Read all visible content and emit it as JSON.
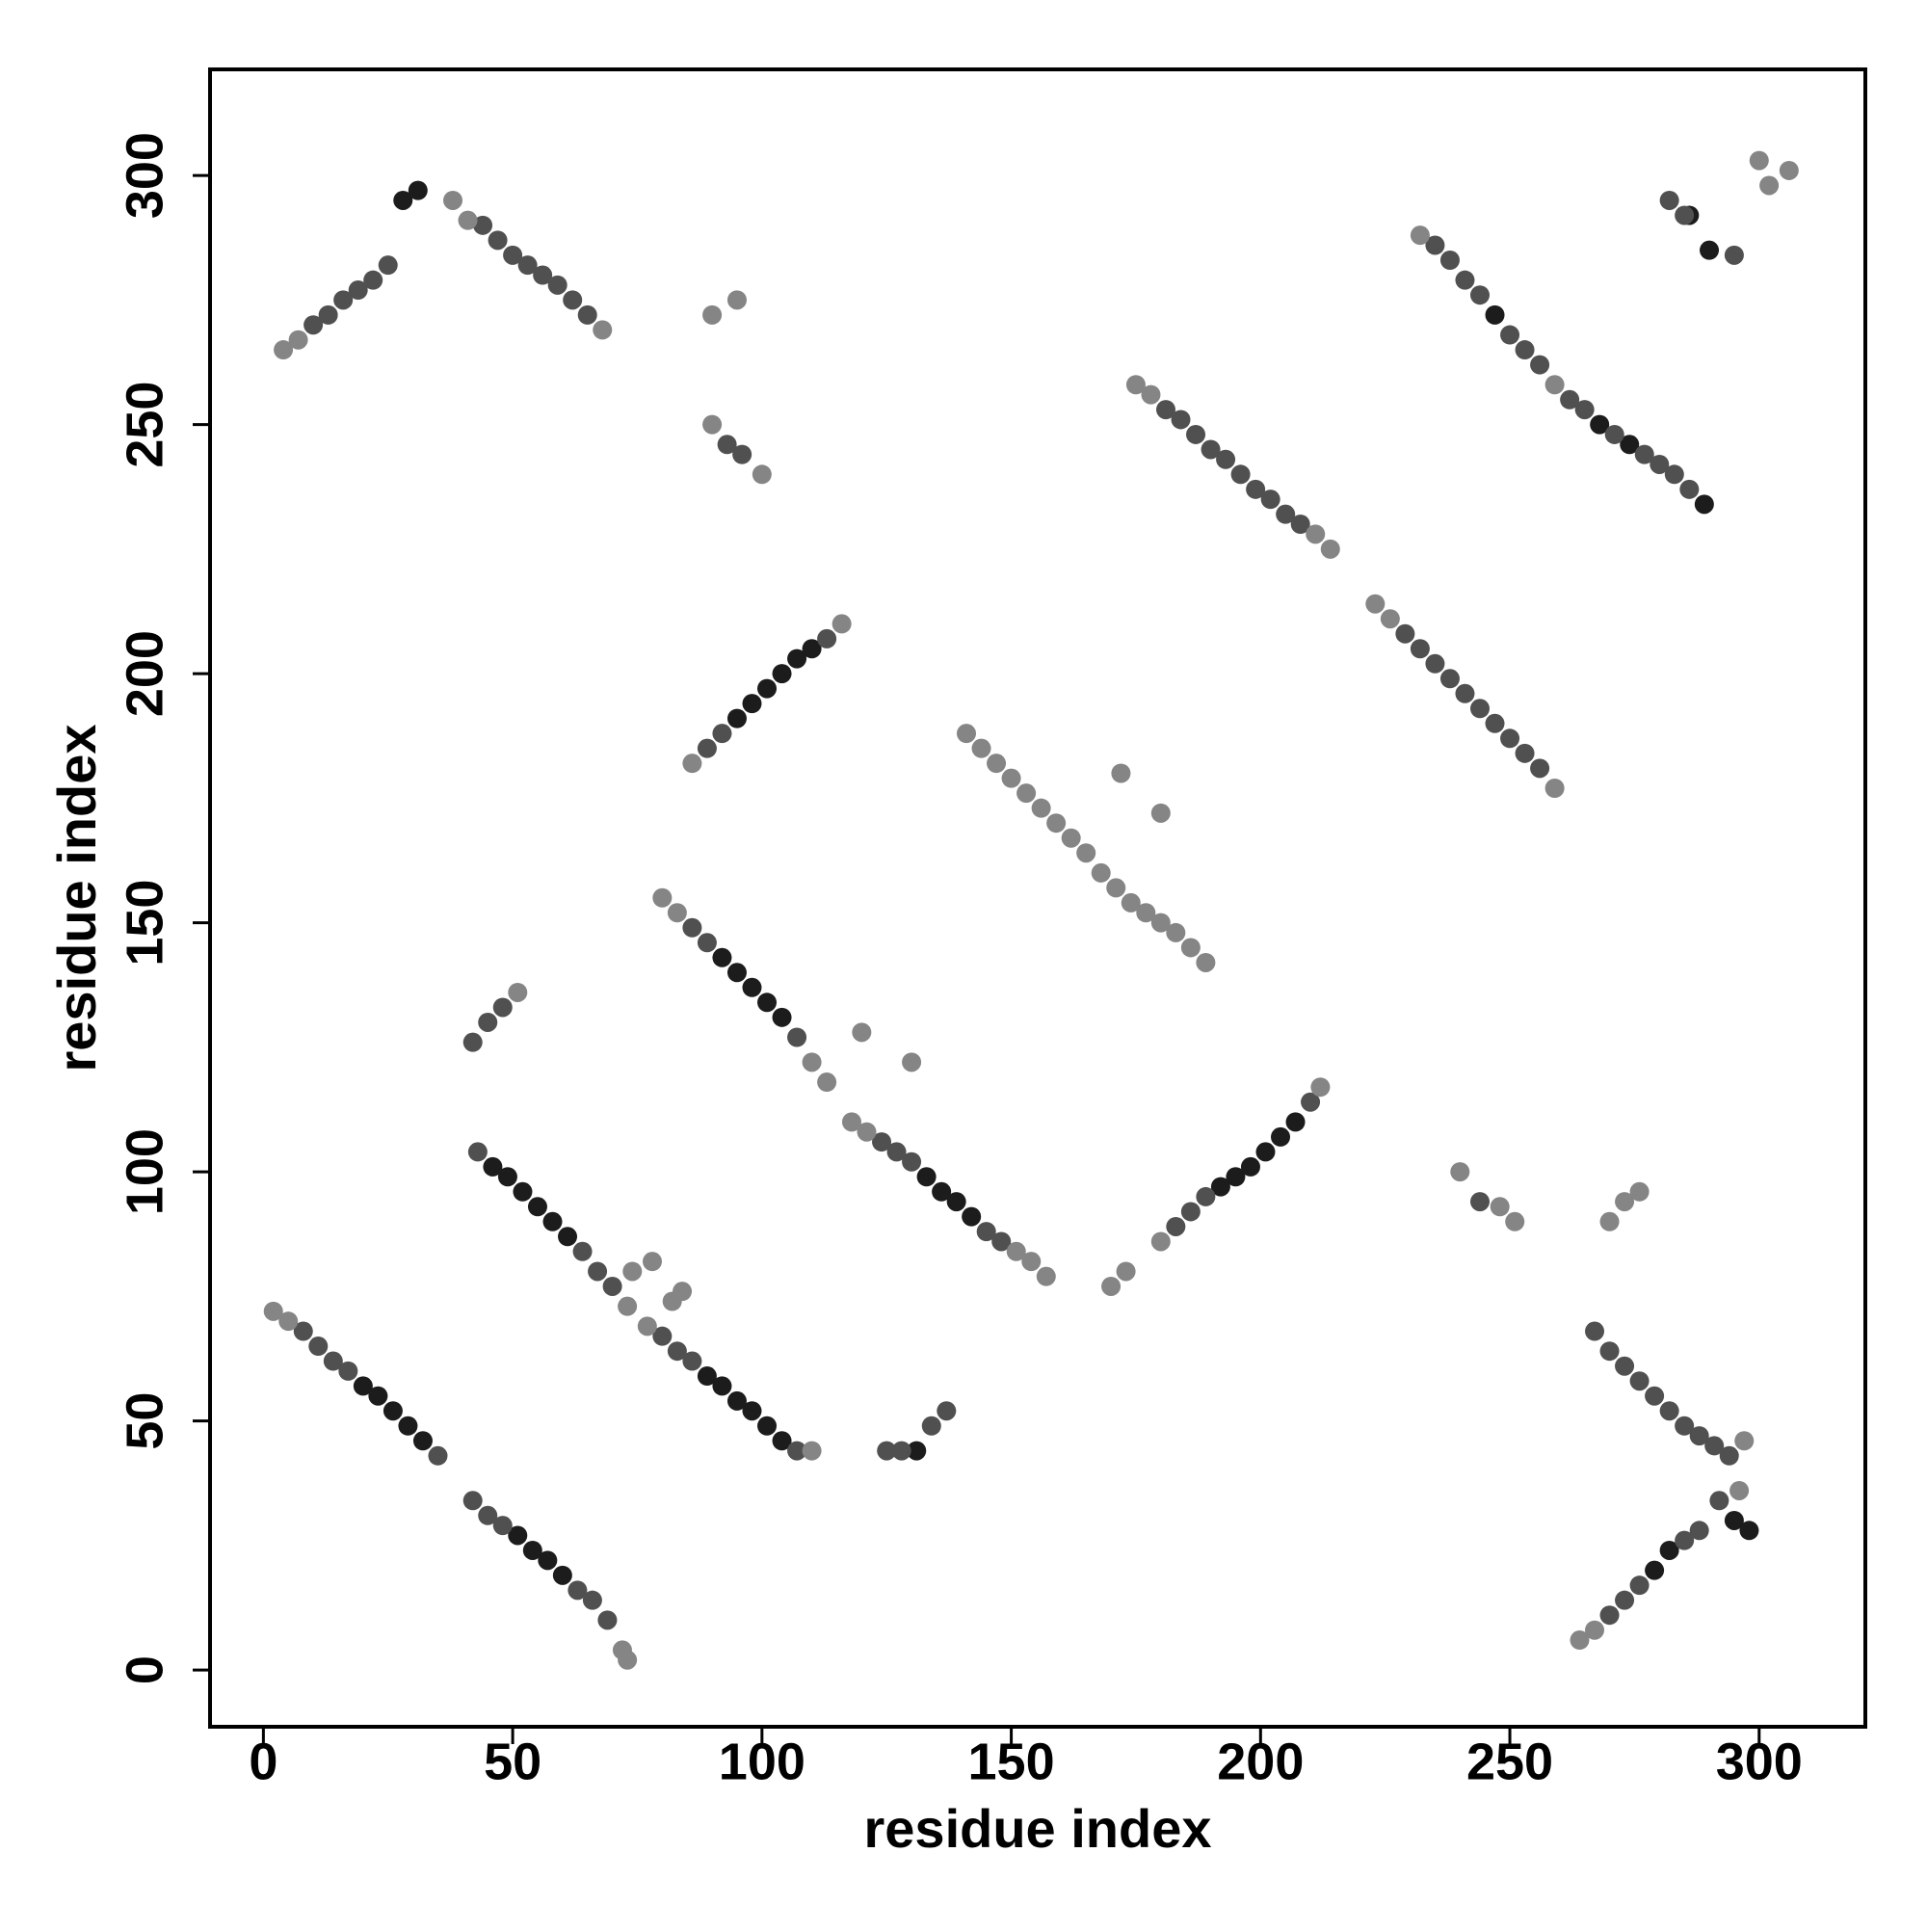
{
  "chart_data": {
    "type": "scatter",
    "xlabel": "residue index",
    "ylabel": "residue index",
    "xlim": [
      -10.7,
      321.3
    ],
    "ylim": [
      -11.4,
      321.3
    ],
    "xticks": [
      0,
      50,
      100,
      150,
      200,
      250,
      300
    ],
    "yticks": [
      0,
      50,
      100,
      150,
      200,
      250,
      300
    ],
    "series": [
      {
        "color": "#1c1c1c",
        "x": [
          20,
          23,
          26,
          29,
          32,
          51,
          54,
          57,
          60,
          46,
          49,
          52,
          55,
          58,
          61,
          89,
          92,
          95,
          98,
          101,
          104,
          92,
          95,
          98,
          101,
          104,
          133,
          136,
          139,
          142,
          95,
          98,
          101,
          104,
          107,
          110,
          192,
          195,
          198,
          201,
          204,
          207,
          247,
          268,
          274,
          289,
          28,
          31,
          279,
          282,
          295,
          298,
          286,
          290,
          131
        ],
        "values": [
          57,
          55,
          52,
          49,
          46,
          27,
          24,
          22,
          19,
          101,
          99,
          96,
          93,
          90,
          87,
          59,
          57,
          54,
          52,
          49,
          46,
          143,
          140,
          137,
          134,
          131,
          99,
          96,
          94,
          91,
          191,
          194,
          197,
          200,
          203,
          205,
          97,
          99,
          101,
          104,
          107,
          110,
          272,
          250,
          246,
          234,
          295,
          297,
          20,
          24,
          30,
          28,
          292,
          285,
          44
        ]
      },
      {
        "color": "#505050",
        "x": [
          8,
          11,
          14,
          17,
          35,
          42,
          45,
          48,
          63,
          66,
          69,
          43,
          64,
          67,
          70,
          80,
          83,
          86,
          107,
          86,
          89,
          107,
          124,
          127,
          130,
          145,
          148,
          181,
          184,
          187,
          190,
          193,
          196,
          199,
          202,
          205,
          208,
          229,
          232,
          235,
          238,
          241,
          244,
          247,
          250,
          253,
          256,
          235,
          238,
          241,
          244,
          250,
          253,
          256,
          262,
          265,
          271,
          277,
          280,
          283,
          286,
          270,
          273,
          276,
          279,
          282,
          285,
          288,
          291,
          270,
          273,
          276,
          285,
          288,
          292,
          89,
          92,
          113,
          183,
          186,
          189,
          210,
          10,
          13,
          16,
          19,
          22,
          25,
          44,
          47,
          50,
          53,
          56,
          59,
          62,
          65,
          42,
          45,
          48,
          93,
          96,
          125,
          128,
          134,
          137,
          244,
          282,
          285,
          295,
          267,
          294
        ],
        "values": [
          68,
          65,
          62,
          60,
          43,
          34,
          31,
          29,
          16,
          14,
          10,
          104,
          84,
          80,
          77,
          67,
          64,
          62,
          44,
          149,
          146,
          127,
          106,
          104,
          102,
          88,
          86,
          253,
          251,
          248,
          245,
          243,
          240,
          237,
          235,
          232,
          230,
          208,
          205,
          202,
          199,
          196,
          193,
          190,
          187,
          184,
          181,
          286,
          283,
          279,
          276,
          268,
          265,
          262,
          255,
          253,
          248,
          244,
          242,
          240,
          237,
          64,
          61,
          58,
          55,
          52,
          49,
          47,
          45,
          11,
          14,
          17,
          26,
          28,
          34,
          185,
          188,
          207,
          89,
          92,
          95,
          114,
          270,
          272,
          275,
          277,
          279,
          282,
          290,
          287,
          284,
          282,
          280,
          278,
          275,
          272,
          126,
          130,
          133,
          246,
          244,
          44,
          44,
          49,
          52,
          94,
          295,
          292,
          284,
          68,
          43
        ]
      },
      {
        "color": "#858585",
        "x": [
          2,
          5,
          72,
          73,
          73,
          77,
          110,
          80,
          83,
          110,
          113,
          118,
          121,
          151,
          154,
          157,
          141,
          144,
          147,
          150,
          153,
          156,
          159,
          162,
          165,
          168,
          171,
          174,
          177,
          180,
          183,
          186,
          189,
          172,
          180,
          175,
          178,
          211,
          214,
          223,
          226,
          259,
          232,
          259,
          264,
          267,
          86,
          116,
          170,
          173,
          180,
          212,
          4,
          7,
          38,
          41,
          68,
          51,
          90,
          95,
          90,
          100,
          74,
          78,
          82,
          84,
          120,
          130,
          240,
          248,
          251,
          270,
          273,
          276,
          300,
          302,
          306,
          296,
          297
        ],
        "values": [
          72,
          70,
          4,
          2,
          73,
          69,
          44,
          155,
          152,
          122,
          118,
          110,
          108,
          84,
          82,
          79,
          188,
          185,
          182,
          179,
          176,
          173,
          170,
          167,
          164,
          160,
          157,
          154,
          152,
          150,
          148,
          145,
          142,
          180,
          172,
          258,
          256,
          228,
          225,
          214,
          211,
          177,
          288,
          258,
          6,
          8,
          182,
          210,
          77,
          80,
          86,
          117,
          265,
          267,
          295,
          291,
          269,
          136,
          272,
          275,
          250,
          240,
          80,
          82,
          74,
          76,
          128,
          122,
          100,
          93,
          90,
          90,
          94,
          96,
          303,
          298,
          301,
          36,
          46
        ]
      }
    ]
  }
}
